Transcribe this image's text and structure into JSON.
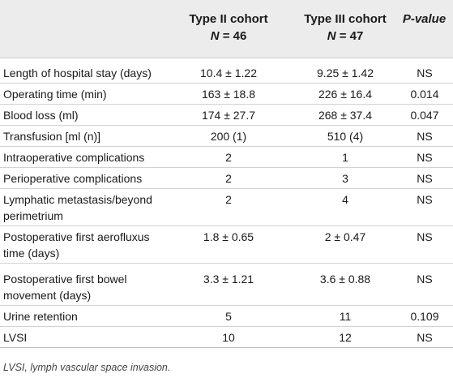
{
  "header": {
    "col1_title": "Type II cohort",
    "col1_n_prefix": "N",
    "col1_n_value": " = 46",
    "col2_title": "Type III cohort",
    "col2_n_prefix": "N",
    "col2_n_value": " = 47",
    "col3_title": "P-value"
  },
  "rows": [
    {
      "label": "Length of hospital stay (days)",
      "type2": "10.4 ± 1.22",
      "type3": "9.25 ± 1.42",
      "p": "NS"
    },
    {
      "label": "Operating time (min)",
      "type2": "163 ± 18.8",
      "type3": "226 ± 16.4",
      "p": "0.014"
    },
    {
      "label": "Blood loss (ml)",
      "type2": "174 ± 27.7",
      "type3": "268 ± 37.4",
      "p": "0.047"
    },
    {
      "label": "Transfusion [ml (n)]",
      "type2": "200 (1)",
      "type3": "510 (4)",
      "p": "NS"
    },
    {
      "label": "Intraoperative complications",
      "type2": "2",
      "type3": "1",
      "p": "NS"
    },
    {
      "label": "Perioperative complications",
      "type2": "2",
      "type3": "3",
      "p": "NS"
    },
    {
      "label_line1": "Lymphatic metastasis/beyond",
      "label_line2": "perimetrium",
      "type2": "2",
      "type3": "4",
      "p": "NS"
    },
    {
      "label_line1": "Postoperative first aerofluxus",
      "label_line2": "time (days)",
      "type2": "1.8 ± 0.65",
      "type3": "2 ± 0.47",
      "p": "NS"
    },
    {
      "label_line1": "Postoperative first bowel",
      "label_line2": "movement (days)",
      "type2": "3.3 ± 1.21",
      "type3": "3.6 ± 0.88",
      "p": "NS"
    },
    {
      "label": "Urine retention",
      "type2": "5",
      "type3": "11",
      "p": "0.109"
    },
    {
      "label": "LVSI",
      "type2": "10",
      "type3": "12",
      "p": "NS"
    }
  ],
  "footnote": "LVSI, lymph vascular space invasion."
}
